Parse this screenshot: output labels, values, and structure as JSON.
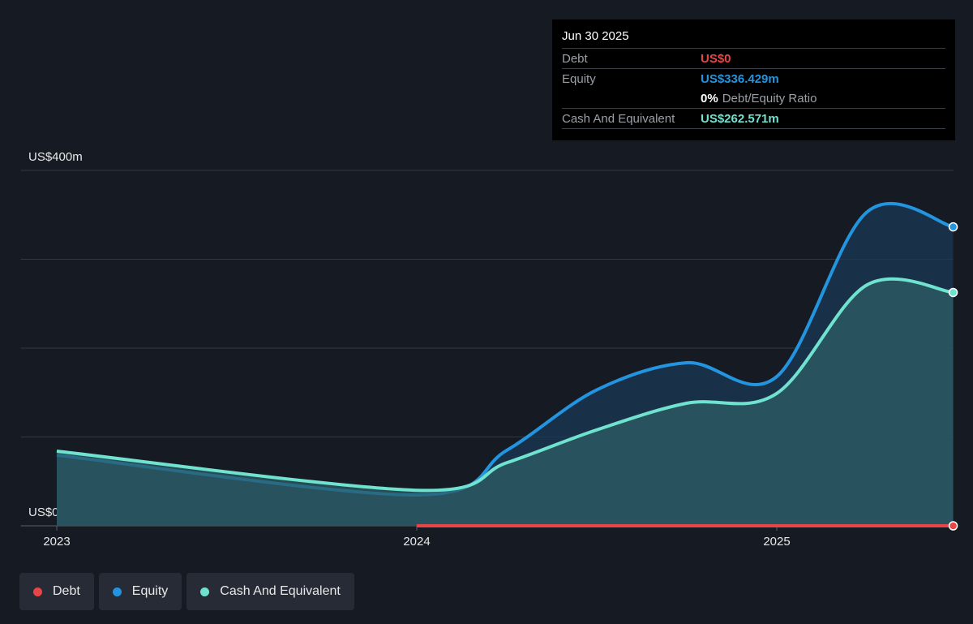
{
  "chart_data": {
    "type": "area",
    "x": [
      2023.0,
      2024.0,
      2024.25,
      2024.5,
      2024.75,
      2025.0,
      2025.25,
      2025.49
    ],
    "xlim": [
      2022.9,
      2025.5
    ],
    "xticks": [
      2023,
      2024,
      2025
    ],
    "ylim": [
      0,
      400
    ],
    "yticks": [
      {
        "value": 0,
        "label": "US$0"
      },
      {
        "value": 100,
        "label": null
      },
      {
        "value": 200,
        "label": null
      },
      {
        "value": 300,
        "label": null
      },
      {
        "value": 400,
        "label": "US$400m"
      }
    ],
    "grid": true,
    "series": [
      {
        "name": "Debt",
        "color": "#e64646",
        "values": [
          null,
          0,
          0,
          0,
          0,
          0,
          0,
          0
        ]
      },
      {
        "name": "Equity",
        "color": "#2394df",
        "values": [
          79.5,
          34.7,
          85,
          153,
          183.6,
          168,
          353,
          336.429
        ]
      },
      {
        "name": "Cash And Equivalent",
        "color": "#6fe3cf",
        "values": [
          84,
          40,
          71,
          108,
          138,
          149,
          271,
          262.571
        ]
      }
    ],
    "tooltip": {
      "date": "Jun 30 2025",
      "debt": {
        "label": "Debt",
        "value": "US$0"
      },
      "equity": {
        "label": "Equity",
        "value": "US$336.429m"
      },
      "ratio": {
        "value": "0%",
        "label": "Debt/Equity Ratio"
      },
      "cash": {
        "label": "Cash And Equivalent",
        "value": "US$262.571m"
      }
    }
  }
}
